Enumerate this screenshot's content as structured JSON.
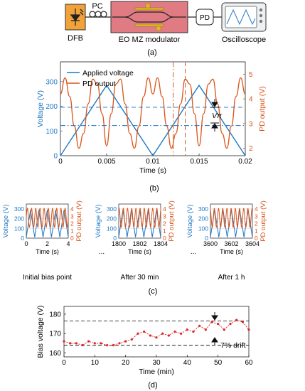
{
  "colors": {
    "blue": "#1f77c4",
    "orange": "#d9541a",
    "dfb_fill": "#f2a23a",
    "modulator_fill": "#e07b84",
    "red_dot": "#e0242a"
  },
  "panel_a": {
    "dfb_label": "DFB",
    "pc_label": "PC",
    "modulator_label": "EO MZ modulator",
    "pd_label": "PD",
    "scope_label": "Oscilloscope",
    "caption": "(a)"
  },
  "panel_b": {
    "caption": "(b)",
    "vpi_label": "Vπ",
    "chart_data": {
      "type": "line",
      "title": "",
      "xlabel": "Time (s)",
      "ylabel": "Voltage (V)",
      "y2label": "PD output (V)",
      "xlim": [
        0,
        0.02
      ],
      "ylim": [
        0,
        380
      ],
      "y2lim": [
        1.7,
        5.5
      ],
      "x_ticks": [
        "0",
        "0.005",
        "0.01",
        "0.015",
        "0.02"
      ],
      "y_ticks": [
        "0",
        "100",
        "200",
        "300"
      ],
      "y2_ticks": [
        "2",
        "3",
        "4",
        "5"
      ],
      "legend": {
        "placement": "top-left",
        "entries": [
          "Applied voltage",
          "PD output"
        ]
      },
      "series": [
        {
          "name": "Applied voltage",
          "x": [
            0,
            0.005,
            0.01,
            0.015,
            0.02
          ],
          "values": [
            0,
            285,
            0,
            285,
            0
          ]
        },
        {
          "name": "PD output",
          "x": [
            0.0,
            0.0005,
            0.001,
            0.0015,
            0.002,
            0.0025,
            0.003,
            0.0035,
            0.004,
            0.0045,
            0.005,
            0.0055,
            0.006,
            0.0065,
            0.007,
            0.0075,
            0.008,
            0.0085,
            0.009,
            0.0095,
            0.01,
            0.0105,
            0.011,
            0.0115,
            0.012,
            0.0125,
            0.013,
            0.0135,
            0.014,
            0.0145,
            0.015,
            0.0155,
            0.016,
            0.0165,
            0.017,
            0.0175,
            0.018,
            0.0185,
            0.019,
            0.0195,
            0.02
          ],
          "values": [
            4.2,
            4.85,
            4.1,
            2.9,
            2.0,
            2.6,
            3.8,
            4.8,
            4.6,
            3.4,
            2.1,
            3.4,
            4.6,
            4.8,
            3.8,
            2.6,
            2.0,
            2.9,
            4.1,
            4.85,
            4.2,
            4.85,
            4.1,
            2.9,
            2.0,
            2.6,
            3.8,
            4.8,
            4.6,
            3.4,
            2.1,
            3.4,
            4.6,
            4.8,
            3.8,
            2.6,
            2.0,
            2.9,
            4.1,
            4.85,
            4.2
          ]
        }
      ],
      "hlines": [
        {
          "value": 196,
          "style": "dashed"
        },
        {
          "value": 122,
          "style": "dashdot"
        }
      ],
      "vlines": [
        {
          "value": 0.0122,
          "style": "dashdot"
        },
        {
          "value": 0.0135,
          "style": "dashed"
        }
      ]
    }
  },
  "panel_c": {
    "caption": "(c)",
    "ellipsis": "...",
    "charts": [
      {
        "type": "line",
        "title": "",
        "subtitle": "Initial bias point",
        "xlabel": "Time (s)",
        "ylabel": "Voltage (V)",
        "y2label": "PD output (V)",
        "x_ticks": [
          "0",
          "2",
          "4"
        ],
        "y_ticks": [
          "0",
          "100",
          "200",
          "300"
        ],
        "y2_ticks": [
          "0",
          "1",
          "2",
          "3",
          "4"
        ],
        "xlim": [
          0,
          4
        ],
        "ylim": [
          0,
          350
        ],
        "y2lim": [
          0,
          4.7
        ]
      },
      {
        "type": "line",
        "title": "",
        "subtitle": "After 30 min",
        "xlabel": "Time (s)",
        "ylabel": "Voltage (V)",
        "y2label": "PD output (V)",
        "x_ticks": [
          "1800",
          "1802",
          "1804"
        ],
        "y_ticks": [
          "0",
          "100",
          "200",
          "300"
        ],
        "y2_ticks": [
          "0",
          "1",
          "2",
          "3",
          "4"
        ],
        "xlim": [
          1800,
          1804
        ],
        "ylim": [
          0,
          350
        ],
        "y2lim": [
          0,
          4.7
        ]
      },
      {
        "type": "line",
        "title": "",
        "subtitle": "After 1 h",
        "xlabel": "Time (s)",
        "ylabel": "Voltage (V)",
        "y2label": "PD output (V)",
        "x_ticks": [
          "3600",
          "3602",
          "3604"
        ],
        "y_ticks": [
          "0",
          "100",
          "200",
          "300"
        ],
        "y2_ticks": [
          "0",
          "1",
          "2",
          "3",
          "4"
        ],
        "xlim": [
          3600,
          3604
        ],
        "ylim": [
          0,
          350
        ],
        "y2lim": [
          0,
          4.7
        ]
      }
    ]
  },
  "panel_d": {
    "caption": "(d)",
    "drift_label": "7% drift",
    "chart_data": {
      "type": "scatter",
      "title": "",
      "xlabel": "Time (min)",
      "ylabel": "Bias voltage (V)",
      "xlim": [
        0,
        60
      ],
      "ylim": [
        158,
        184
      ],
      "x_ticks": [
        "0",
        "10",
        "20",
        "30",
        "40",
        "50",
        "60"
      ],
      "y_ticks": [
        "160",
        "170",
        "180"
      ],
      "series": [
        {
          "name": "",
          "x": [
            0,
            2,
            4,
            6,
            8,
            10,
            12,
            14,
            16,
            18,
            20,
            22,
            24,
            26,
            28,
            30,
            32,
            34,
            36,
            38,
            40,
            42,
            44,
            46,
            48,
            50,
            52,
            54,
            56,
            58,
            60
          ],
          "values": [
            166,
            165,
            165,
            164,
            166,
            165,
            165,
            164,
            164,
            165,
            166,
            167,
            170,
            171,
            169,
            168,
            170,
            169,
            171,
            170,
            172,
            171,
            174,
            172,
            176,
            175,
            172,
            175,
            177,
            176,
            172
          ]
        }
      ],
      "hlines": [
        {
          "value": 176.5,
          "style": "dashed"
        },
        {
          "value": 164,
          "style": "dashed"
        }
      ]
    }
  }
}
